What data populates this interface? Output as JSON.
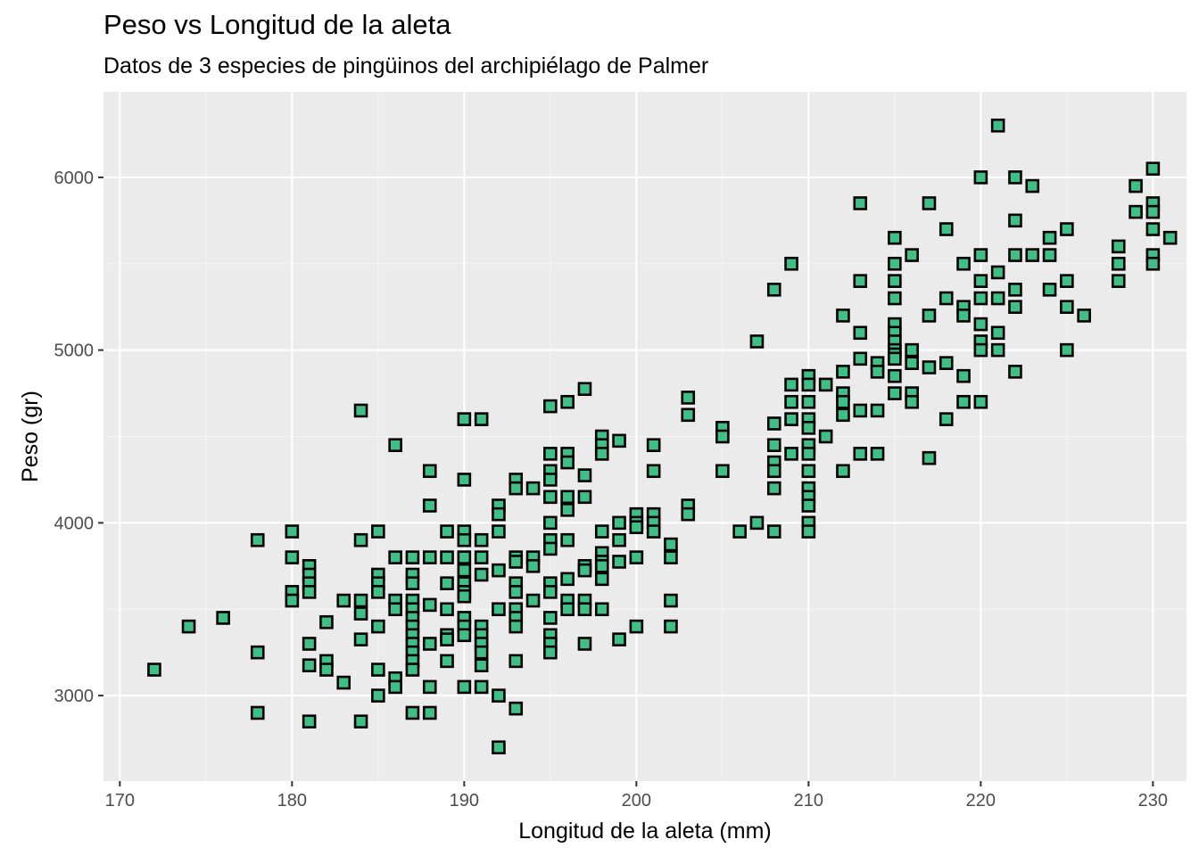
{
  "chart_data": {
    "type": "scatter",
    "title": "Peso vs Longitud de la aleta",
    "subtitle": "Datos de 3 especies de pingüinos del archipiélago de Palmer",
    "xlabel": "Longitud de la aleta (mm)",
    "ylabel": "Peso (gr)",
    "xlim": [
      169.05,
      231.95
    ],
    "ylim": [
      2505,
      6495
    ],
    "x_ticks": [
      170,
      180,
      190,
      200,
      210,
      220,
      230
    ],
    "y_ticks": [
      3000,
      4000,
      5000,
      6000
    ],
    "grid": true,
    "legend": "none",
    "colors": {
      "panel": "#ebebeb",
      "grid_major": "#ffffff",
      "grid_minor": "#f5f5f5",
      "point_fill": "#3fbf85",
      "point_stroke": "#000000",
      "tick_label": "#4d4d4d",
      "tick_mark": "#333333"
    },
    "points": [
      [
        172,
        3150
      ],
      [
        174,
        3400
      ],
      [
        176,
        3450
      ],
      [
        178,
        3900
      ],
      [
        178,
        3250
      ],
      [
        178,
        2900
      ],
      [
        180,
        3950
      ],
      [
        180,
        3800
      ],
      [
        180,
        3600
      ],
      [
        180,
        3550
      ],
      [
        181,
        3750
      ],
      [
        181,
        3700
      ],
      [
        181,
        3650
      ],
      [
        181,
        3600
      ],
      [
        181,
        3300
      ],
      [
        181,
        3175
      ],
      [
        181,
        2850
      ],
      [
        182,
        3200
      ],
      [
        182,
        3150
      ],
      [
        182,
        3425
      ],
      [
        183,
        3550
      ],
      [
        183,
        3075
      ],
      [
        184,
        4650
      ],
      [
        184,
        3900
      ],
      [
        184,
        3550
      ],
      [
        184,
        3475
      ],
      [
        184,
        3325
      ],
      [
        184,
        2850
      ],
      [
        185,
        3950
      ],
      [
        185,
        3700
      ],
      [
        185,
        3650
      ],
      [
        185,
        3600
      ],
      [
        185,
        3400
      ],
      [
        185,
        3150
      ],
      [
        185,
        3000
      ],
      [
        186,
        4450
      ],
      [
        186,
        3800
      ],
      [
        186,
        3550
      ],
      [
        186,
        3500
      ],
      [
        186,
        3100
      ],
      [
        186,
        3050
      ],
      [
        187,
        3800
      ],
      [
        187,
        3700
      ],
      [
        187,
        3650
      ],
      [
        187,
        3550
      ],
      [
        187,
        3500
      ],
      [
        187,
        3450
      ],
      [
        187,
        3400
      ],
      [
        187,
        3350
      ],
      [
        187,
        3300
      ],
      [
        187,
        3250
      ],
      [
        187,
        3200
      ],
      [
        187,
        3150
      ],
      [
        187,
        2900
      ],
      [
        188,
        4300
      ],
      [
        188,
        4100
      ],
      [
        188,
        3800
      ],
      [
        188,
        3525
      ],
      [
        188,
        3300
      ],
      [
        188,
        3050
      ],
      [
        188,
        2900
      ],
      [
        189,
        3950
      ],
      [
        189,
        3800
      ],
      [
        189,
        3650
      ],
      [
        189,
        3500
      ],
      [
        189,
        3350
      ],
      [
        189,
        3325
      ],
      [
        189,
        3200
      ],
      [
        190,
        4600
      ],
      [
        190,
        4250
      ],
      [
        190,
        3950
      ],
      [
        190,
        3900
      ],
      [
        190,
        3800
      ],
      [
        190,
        3725
      ],
      [
        190,
        3650
      ],
      [
        190,
        3600
      ],
      [
        190,
        3575
      ],
      [
        190,
        3450
      ],
      [
        190,
        3400
      ],
      [
        190,
        3350
      ],
      [
        190,
        3050
      ],
      [
        191,
        4600
      ],
      [
        191,
        3900
      ],
      [
        191,
        3800
      ],
      [
        191,
        3700
      ],
      [
        191,
        3400
      ],
      [
        191,
        3350
      ],
      [
        191,
        3300
      ],
      [
        191,
        3250
      ],
      [
        191,
        3175
      ],
      [
        191,
        3050
      ],
      [
        192,
        4100
      ],
      [
        192,
        4050
      ],
      [
        192,
        3950
      ],
      [
        192,
        3725
      ],
      [
        192,
        3500
      ],
      [
        192,
        3000
      ],
      [
        192,
        2700
      ],
      [
        193,
        4250
      ],
      [
        193,
        4200
      ],
      [
        193,
        3800
      ],
      [
        193,
        3775
      ],
      [
        193,
        3650
      ],
      [
        193,
        3600
      ],
      [
        193,
        3500
      ],
      [
        193,
        3450
      ],
      [
        193,
        3400
      ],
      [
        193,
        3200
      ],
      [
        193,
        2925
      ],
      [
        194,
        4200
      ],
      [
        194,
        3800
      ],
      [
        194,
        3750
      ],
      [
        194,
        3550
      ],
      [
        195,
        4675
      ],
      [
        195,
        4400
      ],
      [
        195,
        4300
      ],
      [
        195,
        4250
      ],
      [
        195,
        4150
      ],
      [
        195,
        4000
      ],
      [
        195,
        3900
      ],
      [
        195,
        3850
      ],
      [
        195,
        3650
      ],
      [
        195,
        3600
      ],
      [
        195,
        3450
      ],
      [
        195,
        3350
      ],
      [
        195,
        3300
      ],
      [
        195,
        3250
      ],
      [
        196,
        4700
      ],
      [
        196,
        4400
      ],
      [
        196,
        4350
      ],
      [
        196,
        4150
      ],
      [
        196,
        4075
      ],
      [
        196,
        3900
      ],
      [
        196,
        3675
      ],
      [
        196,
        3550
      ],
      [
        196,
        3500
      ],
      [
        197,
        4775
      ],
      [
        197,
        4275
      ],
      [
        197,
        4150
      ],
      [
        197,
        3750
      ],
      [
        197,
        3725
      ],
      [
        197,
        3550
      ],
      [
        197,
        3500
      ],
      [
        197,
        3300
      ],
      [
        198,
        4500
      ],
      [
        198,
        4450
      ],
      [
        198,
        4400
      ],
      [
        198,
        3950
      ],
      [
        198,
        3825
      ],
      [
        198,
        3775
      ],
      [
        198,
        3750
      ],
      [
        198,
        3675
      ],
      [
        198,
        3500
      ],
      [
        199,
        4475
      ],
      [
        199,
        4000
      ],
      [
        199,
        3900
      ],
      [
        199,
        3775
      ],
      [
        199,
        3325
      ],
      [
        200,
        4050
      ],
      [
        200,
        4000
      ],
      [
        200,
        3975
      ],
      [
        200,
        3800
      ],
      [
        200,
        3400
      ],
      [
        201,
        4450
      ],
      [
        201,
        4300
      ],
      [
        201,
        4050
      ],
      [
        201,
        4000
      ],
      [
        201,
        3950
      ],
      [
        202,
        3875
      ],
      [
        202,
        3800
      ],
      [
        202,
        3550
      ],
      [
        202,
        3400
      ],
      [
        203,
        4725
      ],
      [
        203,
        4625
      ],
      [
        203,
        4100
      ],
      [
        203,
        4050
      ],
      [
        205,
        4550
      ],
      [
        205,
        4500
      ],
      [
        205,
        4300
      ],
      [
        206,
        3950
      ],
      [
        207,
        5050
      ],
      [
        207,
        4000
      ],
      [
        208,
        5350
      ],
      [
        208,
        4575
      ],
      [
        208,
        4450
      ],
      [
        208,
        4350
      ],
      [
        208,
        4300
      ],
      [
        208,
        4200
      ],
      [
        208,
        3950
      ],
      [
        209,
        5500
      ],
      [
        209,
        4800
      ],
      [
        209,
        4700
      ],
      [
        209,
        4600
      ],
      [
        209,
        4400
      ],
      [
        210,
        4850
      ],
      [
        210,
        4800
      ],
      [
        210,
        4700
      ],
      [
        210,
        4600
      ],
      [
        210,
        4550
      ],
      [
        210,
        4450
      ],
      [
        210,
        4400
      ],
      [
        210,
        4300
      ],
      [
        210,
        4200
      ],
      [
        210,
        4150
      ],
      [
        210,
        4100
      ],
      [
        210,
        4000
      ],
      [
        210,
        3950
      ],
      [
        211,
        4800
      ],
      [
        211,
        4500
      ],
      [
        212,
        5200
      ],
      [
        212,
        4875
      ],
      [
        212,
        4750
      ],
      [
        212,
        4700
      ],
      [
        212,
        4625
      ],
      [
        212,
        4300
      ],
      [
        213,
        5850
      ],
      [
        213,
        5400
      ],
      [
        213,
        5100
      ],
      [
        213,
        4950
      ],
      [
        213,
        4650
      ],
      [
        213,
        4400
      ],
      [
        214,
        4925
      ],
      [
        214,
        4875
      ],
      [
        214,
        4650
      ],
      [
        214,
        4400
      ],
      [
        215,
        5650
      ],
      [
        215,
        5500
      ],
      [
        215,
        5400
      ],
      [
        215,
        5300
      ],
      [
        215,
        5150
      ],
      [
        215,
        5100
      ],
      [
        215,
        5050
      ],
      [
        215,
        5000
      ],
      [
        215,
        4975
      ],
      [
        215,
        4950
      ],
      [
        215,
        4850
      ],
      [
        215,
        4750
      ],
      [
        216,
        5550
      ],
      [
        216,
        5000
      ],
      [
        216,
        4925
      ],
      [
        216,
        4750
      ],
      [
        216,
        4700
      ],
      [
        217,
        5850
      ],
      [
        217,
        5200
      ],
      [
        217,
        4900
      ],
      [
        217,
        4375
      ],
      [
        218,
        5700
      ],
      [
        218,
        5300
      ],
      [
        218,
        4925
      ],
      [
        218,
        4600
      ],
      [
        219,
        5500
      ],
      [
        219,
        5250
      ],
      [
        219,
        5200
      ],
      [
        219,
        4850
      ],
      [
        219,
        4700
      ],
      [
        220,
        6000
      ],
      [
        220,
        5550
      ],
      [
        220,
        5400
      ],
      [
        220,
        5300
      ],
      [
        220,
        5150
      ],
      [
        220,
        5050
      ],
      [
        220,
        5000
      ],
      [
        220,
        4700
      ],
      [
        221,
        6300
      ],
      [
        221,
        5450
      ],
      [
        221,
        5300
      ],
      [
        221,
        5100
      ],
      [
        221,
        5000
      ],
      [
        222,
        6000
      ],
      [
        222,
        5750
      ],
      [
        222,
        5550
      ],
      [
        222,
        5350
      ],
      [
        222,
        5250
      ],
      [
        222,
        4875
      ],
      [
        223,
        5950
      ],
      [
        223,
        5550
      ],
      [
        224,
        5650
      ],
      [
        224,
        5550
      ],
      [
        224,
        5350
      ],
      [
        225,
        5700
      ],
      [
        225,
        5400
      ],
      [
        225,
        5250
      ],
      [
        225,
        5000
      ],
      [
        226,
        5200
      ],
      [
        228,
        5600
      ],
      [
        228,
        5500
      ],
      [
        228,
        5400
      ],
      [
        229,
        5950
      ],
      [
        229,
        5800
      ],
      [
        230,
        6050
      ],
      [
        230,
        5850
      ],
      [
        230,
        5800
      ],
      [
        230,
        5700
      ],
      [
        230,
        5550
      ],
      [
        230,
        5500
      ],
      [
        231,
        5650
      ]
    ]
  }
}
